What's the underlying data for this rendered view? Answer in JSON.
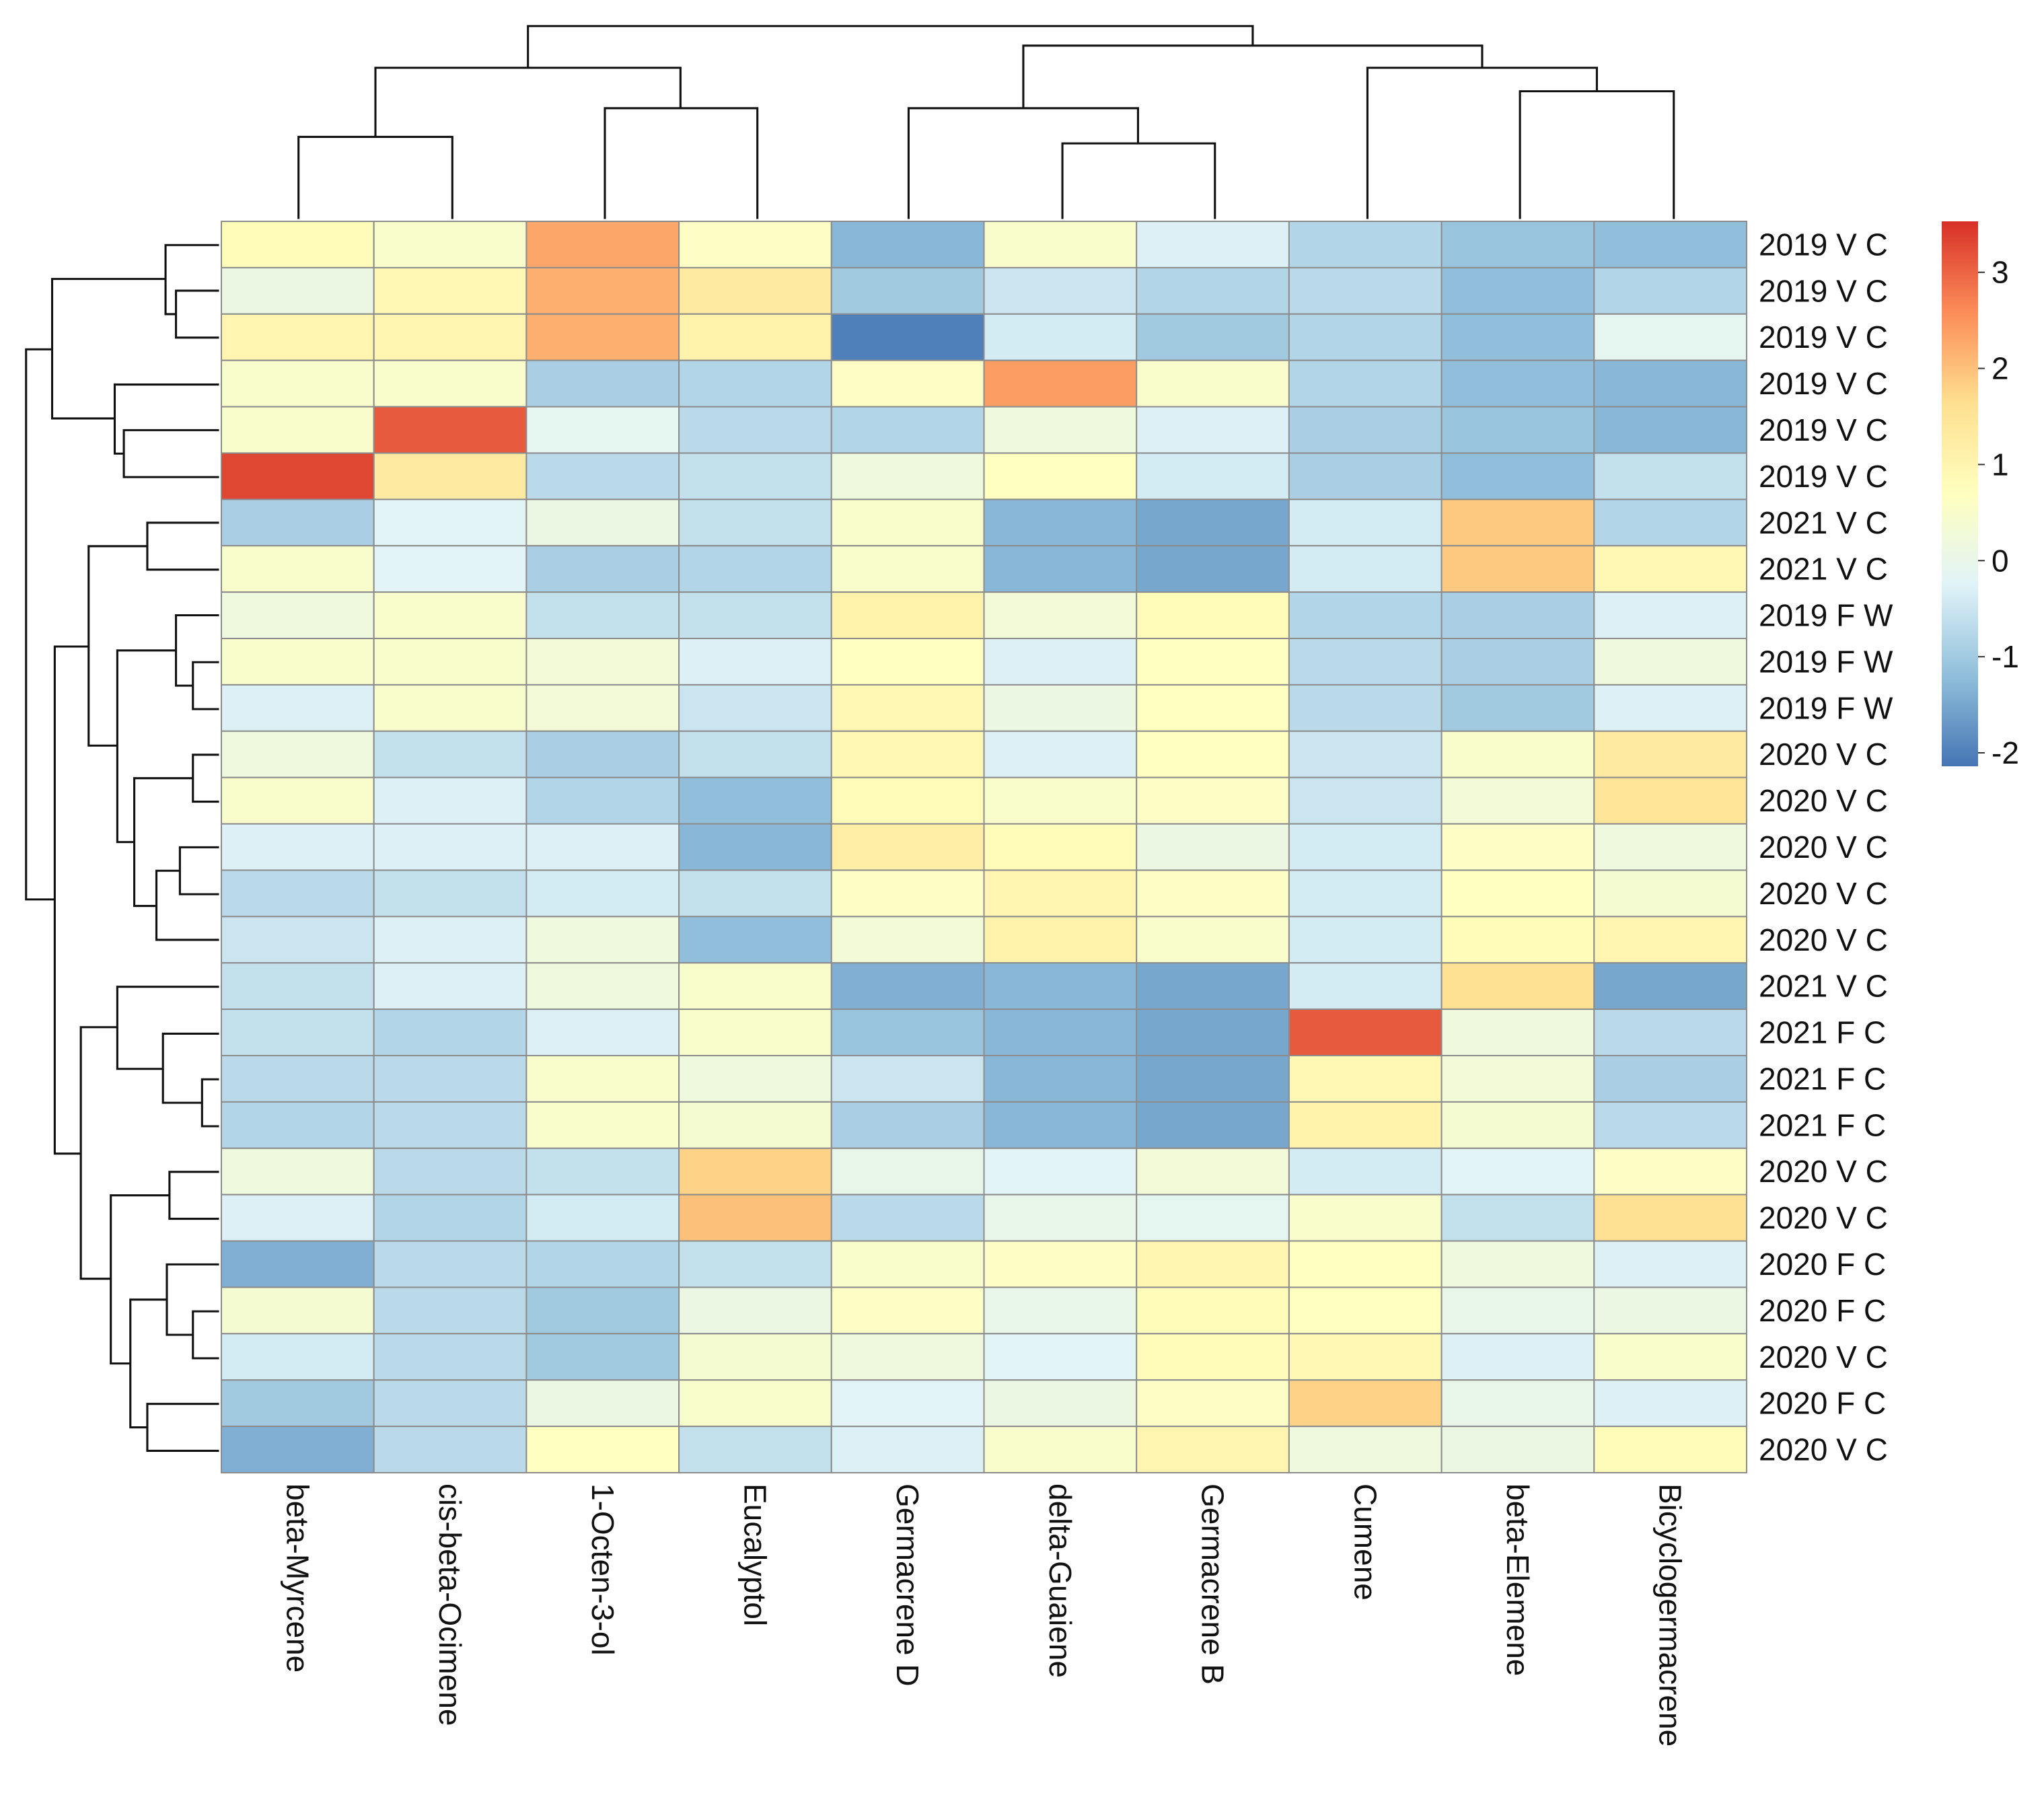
{
  "chart_data": {
    "type": "heatmap",
    "columns": [
      "beta-Myrcene",
      "cis-beta-Ocimene",
      "1-Octen-3-ol",
      "Eucalyptol",
      "Germacrene D",
      "delta-Guaiene",
      "Germacrene B",
      "Cumene",
      "beta-Elemene",
      "Bicyclogermacrene"
    ],
    "rows": [
      "2019 V C",
      "2019 V C",
      "2019 V C",
      "2019 V C",
      "2019 V C",
      "2019 V C",
      "2021 V C",
      "2021 V C",
      "2019 F W",
      "2019 F W",
      "2019 F W",
      "2020 V C",
      "2020 V C",
      "2020 V C",
      "2020 V C",
      "2020 V C",
      "2021 V C",
      "2021 F C",
      "2021 F C",
      "2021 F C",
      "2020 V C",
      "2020 V C",
      "2020 F C",
      "2020 F C",
      "2020 V C",
      "2020 F C",
      "2020 V C"
    ],
    "values": [
      [
        0.8,
        0.5,
        2.3,
        0.6,
        -1.3,
        0.5,
        -0.3,
        -0.8,
        -1.1,
        -1.2
      ],
      [
        0.1,
        0.9,
        2.2,
        1.3,
        -1.0,
        -0.5,
        -0.8,
        -0.7,
        -1.2,
        -0.8
      ],
      [
        1.0,
        1.0,
        2.2,
        1.1,
        -2.0,
        -0.4,
        -1.0,
        -0.8,
        -1.2,
        -0.1
      ],
      [
        0.5,
        0.5,
        -0.9,
        -0.8,
        0.6,
        2.4,
        0.5,
        -0.8,
        -1.2,
        -1.3
      ],
      [
        0.5,
        3.1,
        -0.1,
        -0.7,
        -0.8,
        0.2,
        -0.3,
        -0.9,
        -1.1,
        -1.3
      ],
      [
        3.3,
        1.3,
        -0.7,
        -0.6,
        0.2,
        0.7,
        -0.4,
        -0.9,
        -1.2,
        -0.6
      ],
      [
        -0.9,
        -0.2,
        0.1,
        -0.6,
        0.5,
        -1.3,
        -1.5,
        -0.4,
        1.9,
        -0.8
      ],
      [
        0.5,
        -0.2,
        -0.9,
        -0.8,
        0.5,
        -1.3,
        -1.5,
        -0.4,
        1.9,
        0.9
      ],
      [
        0.2,
        0.5,
        -0.6,
        -0.6,
        1.1,
        0.3,
        0.8,
        -0.8,
        -0.9,
        -0.3
      ],
      [
        0.5,
        0.5,
        0.3,
        -0.3,
        0.7,
        -0.3,
        0.7,
        -0.7,
        -0.9,
        0.2
      ],
      [
        -0.3,
        0.5,
        0.3,
        -0.5,
        0.9,
        0.1,
        0.7,
        -0.7,
        -1.0,
        -0.3
      ],
      [
        0.2,
        -0.6,
        -0.9,
        -0.6,
        0.9,
        -0.3,
        0.7,
        -0.5,
        0.5,
        1.3
      ],
      [
        0.5,
        -0.3,
        -0.8,
        -1.2,
        0.8,
        0.5,
        0.6,
        -0.5,
        0.3,
        1.5
      ],
      [
        -0.3,
        -0.3,
        -0.3,
        -1.3,
        1.2,
        0.8,
        0.1,
        -0.4,
        0.6,
        0.2
      ],
      [
        -0.7,
        -0.6,
        -0.4,
        -0.6,
        0.6,
        1.0,
        0.6,
        -0.4,
        0.7,
        0.4
      ],
      [
        -0.5,
        -0.3,
        0.2,
        -1.2,
        0.3,
        1.1,
        0.5,
        -0.4,
        0.8,
        1.0
      ],
      [
        -0.6,
        -0.3,
        0.2,
        0.5,
        -1.4,
        -1.3,
        -1.5,
        -0.4,
        1.6,
        -1.5
      ],
      [
        -0.6,
        -0.8,
        -0.3,
        0.5,
        -1.1,
        -1.3,
        -1.5,
        3.1,
        0.2,
        -0.7
      ],
      [
        -0.7,
        -0.7,
        0.5,
        0.2,
        -0.5,
        -1.3,
        -1.5,
        0.9,
        0.3,
        -0.9
      ],
      [
        -0.8,
        -0.7,
        0.5,
        0.4,
        -0.9,
        -1.3,
        -1.5,
        1.1,
        0.4,
        -0.7
      ],
      [
        0.2,
        -0.7,
        -0.6,
        1.8,
        0.0,
        -0.2,
        0.3,
        -0.4,
        -0.2,
        0.6
      ],
      [
        -0.3,
        -0.8,
        -0.4,
        2.0,
        -0.7,
        0.0,
        -0.1,
        0.5,
        -0.6,
        1.6
      ],
      [
        -1.4,
        -0.7,
        -0.8,
        -0.6,
        0.5,
        0.6,
        1.0,
        0.7,
        0.2,
        -0.3
      ],
      [
        0.4,
        -0.7,
        -1.0,
        0.1,
        0.6,
        0.0,
        0.8,
        0.7,
        0.0,
        0.1
      ],
      [
        -0.4,
        -0.7,
        -1.0,
        0.4,
        0.2,
        -0.2,
        0.8,
        0.9,
        -0.3,
        0.5
      ],
      [
        -1.0,
        -0.7,
        0.1,
        0.5,
        -0.2,
        0.1,
        0.6,
        1.8,
        0.0,
        -0.3
      ],
      [
        -1.4,
        -0.7,
        0.7,
        -0.6,
        -0.3,
        0.5,
        1.0,
        0.2,
        0.1,
        0.8
      ]
    ],
    "colors": [
      "#4575b4",
      "#91bfdb",
      "#e0f3f8",
      "#ffffbf",
      "#fee090",
      "#fc8d59",
      "#d73027"
    ],
    "clim": [
      -2.14,
      3.53
    ],
    "cticks": [
      -2,
      -1,
      0,
      1,
      2,
      3
    ]
  }
}
